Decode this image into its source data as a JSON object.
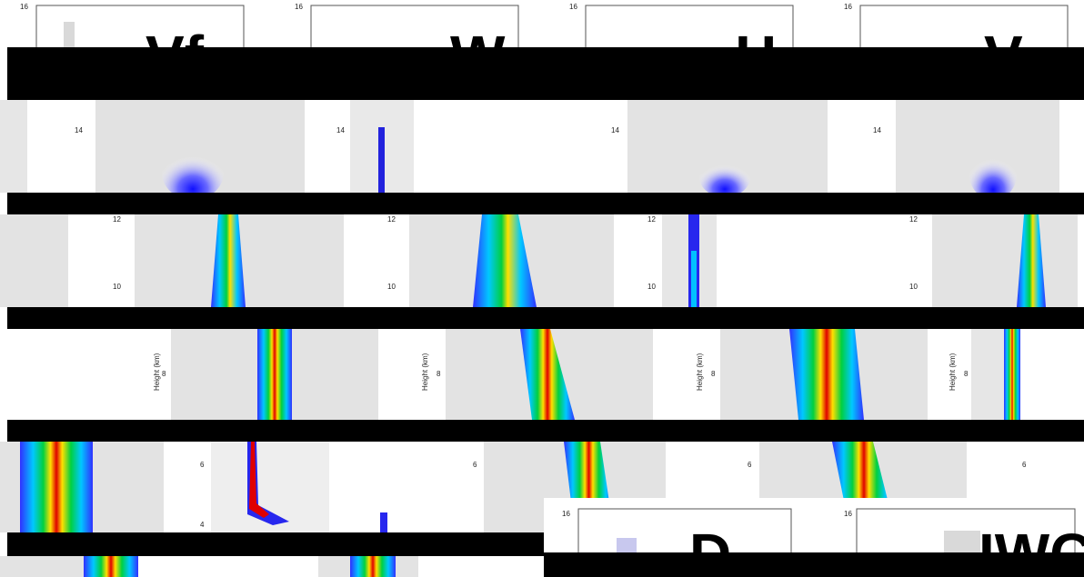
{
  "panel_titles": {
    "top": [
      "Vf",
      "W",
      "H",
      "V"
    ],
    "bottom": [
      "D",
      "IWC"
    ]
  },
  "height_ticks": {
    "row1": "16",
    "row2": "14",
    "row3_a": "12",
    "row3_b": "10",
    "row4": "8",
    "row5_a": "6",
    "row5_b": "4"
  },
  "axis_label": "Height (km)",
  "colors": {
    "background": "#ffffff",
    "noise_gray": "#d9d9d9",
    "band": "#000000",
    "colormap": [
      "#3030ff",
      "#00c8ff",
      "#00d040",
      "#ffe000",
      "#ff7000",
      "#e00000"
    ]
  }
}
